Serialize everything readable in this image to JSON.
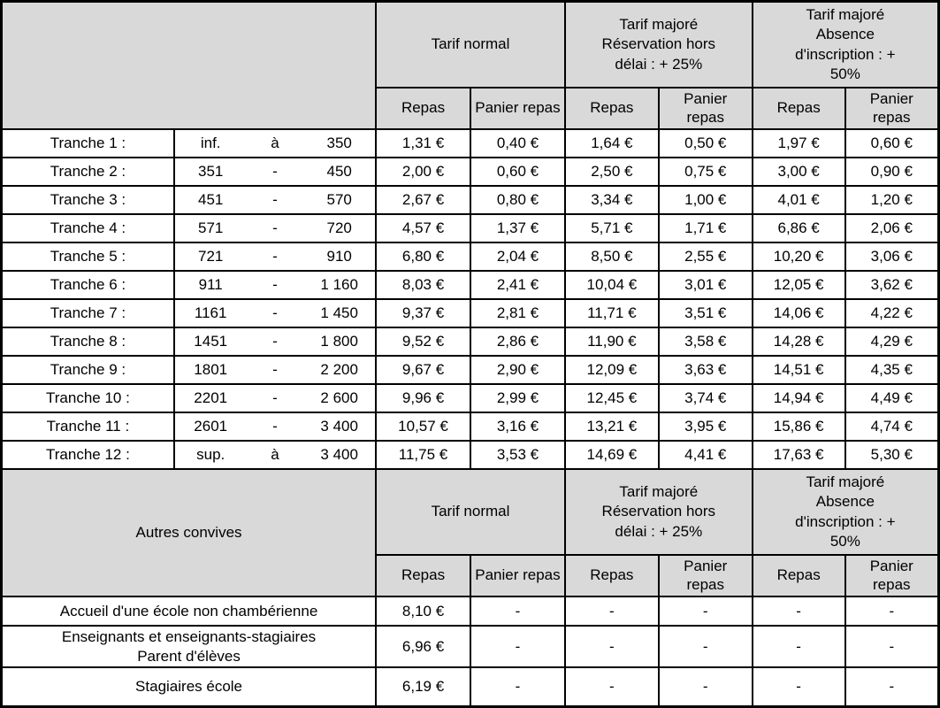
{
  "header": {
    "groups": [
      {
        "title": "Tarif normal"
      },
      {
        "title": "Tarif majoré\nRéservation hors\ndélai : + 25%"
      },
      {
        "title": "Tarif majoré\nAbsence\nd'inscription : +\n50%"
      }
    ],
    "sub": {
      "repas": "Repas",
      "panier": "Panier repas"
    }
  },
  "tranches": [
    {
      "label": "Tranche 1 :",
      "from": "inf.",
      "sep": "à",
      "to": "350",
      "values": [
        "1,31 €",
        "0,40 €",
        "1,64 €",
        "0,50 €",
        "1,97 €",
        "0,60 €"
      ]
    },
    {
      "label": "Tranche 2 :",
      "from": "351",
      "sep": "-",
      "to": "450",
      "values": [
        "2,00 €",
        "0,60 €",
        "2,50 €",
        "0,75 €",
        "3,00 €",
        "0,90 €"
      ]
    },
    {
      "label": "Tranche 3 :",
      "from": "451",
      "sep": "-",
      "to": "570",
      "values": [
        "2,67 €",
        "0,80 €",
        "3,34 €",
        "1,00 €",
        "4,01 €",
        "1,20 €"
      ]
    },
    {
      "label": "Tranche 4 :",
      "from": "571",
      "sep": "-",
      "to": "720",
      "values": [
        "4,57 €",
        "1,37 €",
        "5,71 €",
        "1,71 €",
        "6,86 €",
        "2,06 €"
      ]
    },
    {
      "label": "Tranche 5 :",
      "from": "721",
      "sep": "-",
      "to": "910",
      "values": [
        "6,80 €",
        "2,04 €",
        "8,50 €",
        "2,55 €",
        "10,20 €",
        "3,06 €"
      ]
    },
    {
      "label": "Tranche 6 :",
      "from": "911",
      "sep": "-",
      "to": "1 160",
      "values": [
        "8,03 €",
        "2,41 €",
        "10,04 €",
        "3,01 €",
        "12,05 €",
        "3,62 €"
      ]
    },
    {
      "label": "Tranche 7 :",
      "from": "1161",
      "sep": "-",
      "to": "1 450",
      "values": [
        "9,37 €",
        "2,81 €",
        "11,71 €",
        "3,51 €",
        "14,06 €",
        "4,22 €"
      ]
    },
    {
      "label": "Tranche 8 :",
      "from": "1451",
      "sep": "-",
      "to": "1 800",
      "values": [
        "9,52 €",
        "2,86 €",
        "11,90 €",
        "3,58 €",
        "14,28 €",
        "4,29 €"
      ]
    },
    {
      "label": "Tranche 9 :",
      "from": "1801",
      "sep": "-",
      "to": "2 200",
      "values": [
        "9,67 €",
        "2,90 €",
        "12,09 €",
        "3,63 €",
        "14,51 €",
        "4,35 €"
      ]
    },
    {
      "label": "Tranche 10 :",
      "from": "2201",
      "sep": "-",
      "to": "2 600",
      "values": [
        "9,96 €",
        "2,99 €",
        "12,45 €",
        "3,74 €",
        "14,94 €",
        "4,49 €"
      ]
    },
    {
      "label": "Tranche 11 :",
      "from": "2601",
      "sep": "-",
      "to": "3 400",
      "values": [
        "10,57 €",
        "3,16 €",
        "13,21 €",
        "3,95 €",
        "15,86 €",
        "4,74 €"
      ]
    },
    {
      "label": "Tranche 12 :",
      "from": "sup.",
      "sep": "à",
      "to": "3 400",
      "values": [
        "11,75 €",
        "3,53 €",
        "14,69 €",
        "4,41 €",
        "17,63 €",
        "5,30 €"
      ]
    }
  ],
  "autres": {
    "title": "Autres convives",
    "rows": [
      {
        "label": "Accueil d'une école non chambérienne",
        "values": [
          "8,10 €",
          "-",
          "-",
          "-",
          "-",
          "-"
        ]
      },
      {
        "label": "Enseignants et enseignants-stagiaires\nParent d'élèves",
        "values": [
          "6,96 €",
          "-",
          "-",
          "-",
          "-",
          "-"
        ]
      },
      {
        "label": "Stagiaires école",
        "values": [
          "6,19 €",
          "-",
          "-",
          "-",
          "-",
          "-"
        ]
      }
    ]
  },
  "colors": {
    "header_bg": "#d9d9d9",
    "border": "#000000",
    "cell_bg": "#ffffff",
    "text": "#000000"
  }
}
